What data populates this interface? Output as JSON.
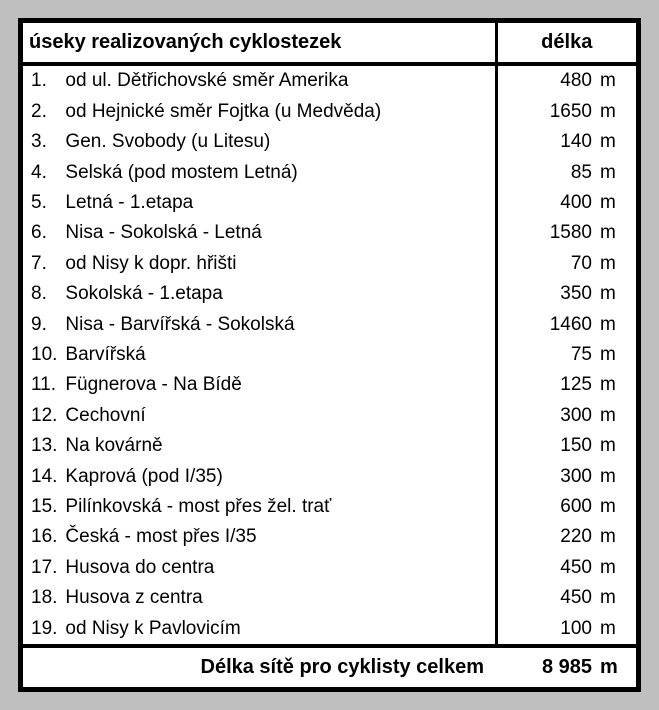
{
  "table": {
    "header": {
      "sections_label": "úseky realizovaných cyklostezek",
      "length_label": "délka"
    },
    "rows": [
      {
        "num": "1.",
        "desc": "od ul. Dětřichovské směr Amerika",
        "value": "480",
        "unit": "m"
      },
      {
        "num": "2.",
        "desc": "od Hejnické směr Fojtka (u Medvěda)",
        "value": "1650",
        "unit": "m"
      },
      {
        "num": "3.",
        "desc": "Gen. Svobody (u Litesu)",
        "value": "140",
        "unit": "m"
      },
      {
        "num": "4.",
        "desc": "Selská (pod mostem Letná)",
        "value": "85",
        "unit": "m"
      },
      {
        "num": "5.",
        "desc": "Letná - 1.etapa",
        "value": "400",
        "unit": "m"
      },
      {
        "num": "6.",
        "desc": "Nisa - Sokolská - Letná",
        "value": "1580",
        "unit": "m"
      },
      {
        "num": "7.",
        "desc": "od Nisy k dopr. hřišti",
        "value": "70",
        "unit": "m"
      },
      {
        "num": "8.",
        "desc": "Sokolská - 1.etapa",
        "value": "350",
        "unit": "m"
      },
      {
        "num": "9.",
        "desc": "Nisa - Barvířská - Sokolská",
        "value": "1460",
        "unit": "m"
      },
      {
        "num": "10.",
        "desc": "Barvířská",
        "value": "75",
        "unit": "m"
      },
      {
        "num": "11.",
        "desc": "Fügnerova - Na Bídě",
        "value": "125",
        "unit": "m"
      },
      {
        "num": "12.",
        "desc": "Cechovní",
        "value": "300",
        "unit": "m"
      },
      {
        "num": "13.",
        "desc": "Na kovárně",
        "value": "150",
        "unit": "m"
      },
      {
        "num": "14.",
        "desc": "Kaprová (pod I/35)",
        "value": "300",
        "unit": "m"
      },
      {
        "num": "15.",
        "desc": "Pilínkovská - most přes žel. trať",
        "value": "600",
        "unit": "m"
      },
      {
        "num": "16.",
        "desc": "Česká - most přes I/35",
        "value": "220",
        "unit": "m"
      },
      {
        "num": "17.",
        "desc": "Husova do centra",
        "value": "450",
        "unit": "m"
      },
      {
        "num": "18.",
        "desc": "Husova z centra",
        "value": "450",
        "unit": "m"
      },
      {
        "num": "19.",
        "desc": "od Nisy k Pavlovicím",
        "value": "100",
        "unit": "m"
      }
    ],
    "footer": {
      "total_label": "Délka sítě pro cyklisty celkem",
      "total_value": "8 985",
      "total_unit": "m"
    }
  },
  "style": {
    "background_color": "#bfbfbf",
    "table_background": "#ffffff",
    "border_color": "#000000",
    "outer_border_width": 5,
    "section_border_width": 4,
    "column_border_width": 3,
    "header_fontsize": 20,
    "body_fontsize": 19,
    "footer_fontsize": 20,
    "font_family": "Arial"
  }
}
